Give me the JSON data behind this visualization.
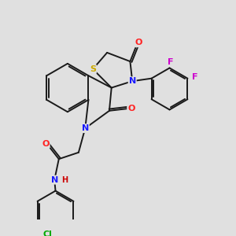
{
  "bg_color": "#e0e0e0",
  "bond_color": "#1a1a1a",
  "bond_width": 1.4,
  "atom_colors": {
    "N": "#1a1aff",
    "O": "#ff2222",
    "S": "#ccaa00",
    "F": "#cc00cc",
    "Cl": "#00aa00",
    "C": "#1a1a1a",
    "H": "#cc0000"
  }
}
